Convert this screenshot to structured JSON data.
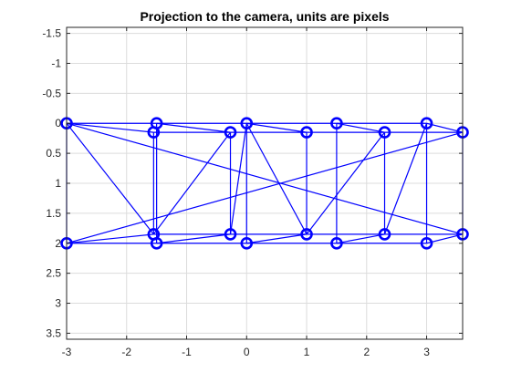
{
  "chart_data": {
    "type": "line",
    "title": "Projection to the camera, units are pixels",
    "xlabel": "",
    "ylabel": "",
    "xlim": [
      -3,
      3.6
    ],
    "ylim": [
      -1.6,
      3.6
    ],
    "y_reversed": true,
    "grid": true,
    "legend": "none",
    "series_color": "#0000ff",
    "marker": "circle",
    "xticks": [
      -3,
      -2,
      -1,
      0,
      1,
      2,
      3
    ],
    "xtick_labels": [
      "-3",
      "-2",
      "-1",
      "0",
      "1",
      "2",
      "3"
    ],
    "yticks": [
      -1.5,
      -1,
      -0.5,
      0,
      0.5,
      1,
      1.5,
      2,
      2.5,
      3,
      3.5
    ],
    "ytick_labels": [
      "-1.5",
      "-1",
      "-0.5",
      "0",
      "0.5",
      "1",
      "1.5",
      "2",
      "2.5",
      "3",
      "3.5"
    ],
    "points": [
      {
        "x": -3,
        "y": 0
      },
      {
        "x": -1.5,
        "y": 0
      },
      {
        "x": 0,
        "y": 0
      },
      {
        "x": 1.5,
        "y": 0
      },
      {
        "x": 3,
        "y": 0
      },
      {
        "x": -1.55,
        "y": 0.15
      },
      {
        "x": -0.27,
        "y": 0.15
      },
      {
        "x": 1.0,
        "y": 0.15
      },
      {
        "x": 2.3,
        "y": 0.15
      },
      {
        "x": 3.6,
        "y": 0.15
      },
      {
        "x": -3,
        "y": 2
      },
      {
        "x": -1.5,
        "y": 2
      },
      {
        "x": 0,
        "y": 2
      },
      {
        "x": 1.5,
        "y": 2
      },
      {
        "x": 3,
        "y": 2
      },
      {
        "x": -1.55,
        "y": 1.85
      },
      {
        "x": -0.27,
        "y": 1.85
      },
      {
        "x": 1.0,
        "y": 1.85
      },
      {
        "x": 2.3,
        "y": 1.85
      },
      {
        "x": 3.6,
        "y": 1.85
      }
    ],
    "edges": [
      [
        0,
        1
      ],
      [
        1,
        2
      ],
      [
        2,
        3
      ],
      [
        3,
        4
      ],
      [
        5,
        6
      ],
      [
        6,
        7
      ],
      [
        7,
        8
      ],
      [
        8,
        9
      ],
      [
        10,
        11
      ],
      [
        11,
        12
      ],
      [
        12,
        13
      ],
      [
        13,
        14
      ],
      [
        15,
        16
      ],
      [
        16,
        17
      ],
      [
        17,
        18
      ],
      [
        18,
        19
      ],
      [
        0,
        10
      ],
      [
        1,
        11
      ],
      [
        2,
        12
      ],
      [
        3,
        13
      ],
      [
        4,
        14
      ],
      [
        5,
        15
      ],
      [
        6,
        16
      ],
      [
        7,
        17
      ],
      [
        8,
        18
      ],
      [
        9,
        19
      ],
      [
        0,
        5
      ],
      [
        1,
        6
      ],
      [
        2,
        7
      ],
      [
        3,
        8
      ],
      [
        4,
        9
      ],
      [
        10,
        15
      ],
      [
        11,
        16
      ],
      [
        12,
        17
      ],
      [
        13,
        18
      ],
      [
        14,
        19
      ],
      [
        0,
        15
      ],
      [
        6,
        15
      ],
      [
        2,
        16
      ],
      [
        2,
        17
      ],
      [
        8,
        17
      ],
      [
        4,
        18
      ],
      [
        0,
        19
      ],
      [
        10,
        9
      ]
    ]
  }
}
